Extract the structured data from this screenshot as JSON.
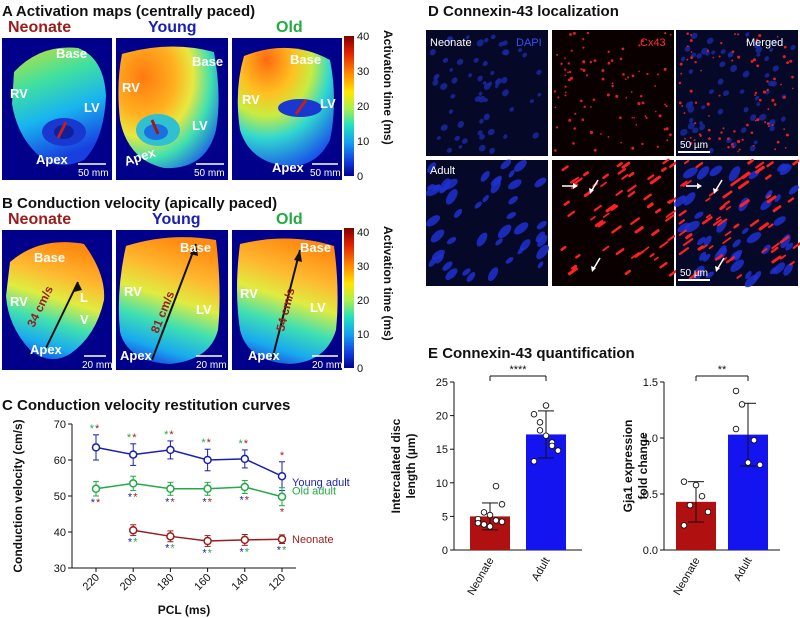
{
  "panels": {
    "A": {
      "letter": "A",
      "title": "Activation maps (centrally paced)"
    },
    "B": {
      "letter": "B",
      "title": "Conduction velocity (apically paced)"
    },
    "C": {
      "letter": "C",
      "title": "Conduction velocity restitution curves"
    },
    "D": {
      "letter": "D",
      "title": "Connexin-43 localization"
    },
    "E": {
      "letter": "E",
      "title": "Connexin-43 quantification"
    }
  },
  "groups": {
    "neonate": "Neonate",
    "young": "Young",
    "old": "Old"
  },
  "labels": {
    "base": "Base",
    "apex": "Apex",
    "rv": "RV",
    "lv": "LV",
    "l": "L",
    "v": "V"
  },
  "scale_bars": {
    "a": "50 mm",
    "b": "20 mm",
    "d": "50 µm"
  },
  "cv_labels": {
    "neonate": "34 cm/s",
    "young": "81 cm/s",
    "old": "54 cm/s"
  },
  "colorbar": {
    "label": "Activation time (ms)",
    "ticks": [
      "40",
      "30",
      "20",
      "10",
      "0"
    ],
    "stops": [
      "#7f0000",
      "#e02000",
      "#ff8a00",
      "#ffe600",
      "#a8f050",
      "#20e0c0",
      "#14a0f0",
      "#1040e0",
      "#00008f"
    ]
  },
  "micro": {
    "rows": [
      "Neonate",
      "Adult"
    ],
    "cols": {
      "dapi": "DAPI",
      "cx43": "Cx43",
      "merged": "Merged"
    }
  },
  "colors": {
    "neonate": "#9b1c1c",
    "young": "#1a1fb0",
    "old": "#22aa44",
    "adult_bar": "#1414f0",
    "neonate_bar": "#b01010"
  },
  "chart_data": [
    {
      "type": "line",
      "title": "Conduction velocity restitution curves",
      "xlabel": "PCL (ms)",
      "ylabel": "Conduction velocity (cm/s)",
      "categories": [
        "220",
        "200",
        "180",
        "160",
        "140",
        "120"
      ],
      "ylim": [
        30,
        70
      ],
      "yticks": [
        "30",
        "40",
        "50",
        "60",
        "70"
      ],
      "series": [
        {
          "name": "Young adult",
          "values": [
            63.5,
            61.5,
            62.8,
            60.0,
            60.3,
            55.5
          ],
          "err": [
            3.5,
            3.0,
            2.5,
            3.0,
            2.5,
            4.0
          ]
        },
        {
          "name": "Old adult",
          "values": [
            52.0,
            53.5,
            52.0,
            52.0,
            52.5,
            49.8
          ],
          "err": [
            2.0,
            2.0,
            1.8,
            1.8,
            1.8,
            2.5
          ]
        },
        {
          "name": "Neonate",
          "values": [
            null,
            40.5,
            38.8,
            37.5,
            37.8,
            38.0
          ],
          "err": [
            0,
            1.5,
            1.5,
            1.5,
            1.5,
            1.2
          ]
        }
      ],
      "significance": "*"
    },
    {
      "type": "bar",
      "ylabel": "Intercalated disc length (µm)",
      "categories": [
        "Neonate",
        "Adult"
      ],
      "values": [
        5.0,
        17.2
      ],
      "err": [
        2.0,
        3.5
      ],
      "ylim": [
        0,
        25
      ],
      "yticks": [
        "0",
        "5",
        "10",
        "15",
        "20",
        "25"
      ],
      "points": [
        [
          4.6,
          3.8,
          5.2,
          4.4,
          6.8,
          4.0,
          5.6,
          3.5,
          9.5,
          4.2
        ],
        [
          20.2,
          17.8,
          17.0,
          16.0,
          14.8,
          13.2,
          19.0,
          21.5,
          15.5
        ]
      ],
      "significance": "****"
    },
    {
      "type": "bar",
      "ylabel": "Gja1 expression fold change",
      "categories": [
        "Neonate",
        "Adult"
      ],
      "values": [
        0.43,
        1.03
      ],
      "err": [
        0.18,
        0.28
      ],
      "ylim": [
        0,
        1.5
      ],
      "yticks": [
        "0.0",
        "0.5",
        "1.0",
        "1.5"
      ],
      "points": [
        [
          0.22,
          0.4,
          0.58,
          0.48,
          0.34,
          0.61
        ],
        [
          1.42,
          1.3,
          0.78,
          0.98,
          0.76,
          1.08
        ]
      ],
      "significance": "**"
    }
  ]
}
